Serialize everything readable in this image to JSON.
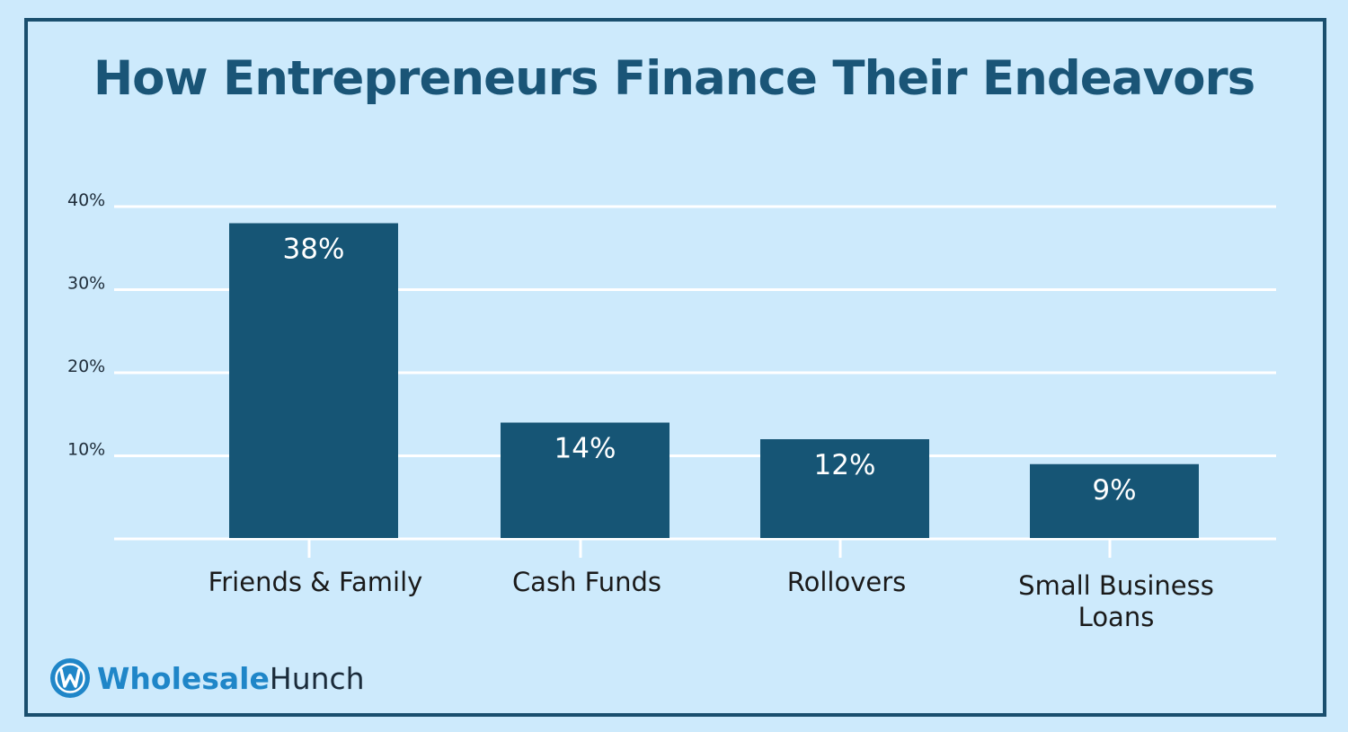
{
  "brand": {
    "part1": "Wholesale",
    "part2": "Hunch",
    "logo_icon": "w-logo-icon",
    "accent_color": "#1f86c8"
  },
  "colors": {
    "background": "#cdeafc",
    "bar": "#165575",
    "title": "#1a5577",
    "grid": "#ffffff",
    "frame": "#1a4f6e"
  },
  "chart_data": {
    "type": "bar",
    "title": "How Entrepreneurs Finance Their Endeavors",
    "xlabel": "",
    "ylabel": "",
    "categories": [
      [
        "Friends & Family"
      ],
      [
        "Cash Funds"
      ],
      [
        "Rollovers"
      ],
      [
        "Small Business",
        "Loans"
      ]
    ],
    "values": [
      38,
      14,
      12,
      9
    ],
    "data_labels": [
      "38%",
      "14%",
      "12%",
      "9%"
    ],
    "yticks": [
      {
        "value": 10,
        "label": "10%"
      },
      {
        "value": 20,
        "label": "20%"
      },
      {
        "value": 30,
        "label": "30%"
      },
      {
        "value": 40,
        "label": "40%"
      }
    ],
    "ylim": [
      0,
      40
    ],
    "grid": true,
    "legend": "none"
  }
}
